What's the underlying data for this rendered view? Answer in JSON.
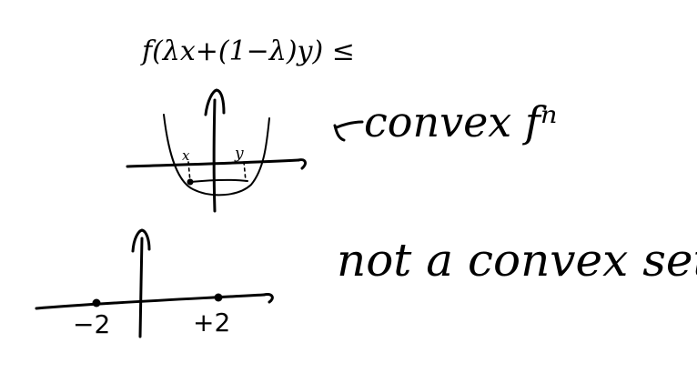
{
  "notes": {
    "inequality": "f(λx+(1−λ)y) ≤",
    "convex_function_label": "convex fⁿ",
    "convex_function_x_point": "x",
    "convex_function_y_point": "y",
    "set_label": "not a convex set",
    "tick_left": "−2",
    "tick_right": "+2"
  },
  "colors": {
    "ink": "#000000",
    "paper": "#ffffff"
  }
}
